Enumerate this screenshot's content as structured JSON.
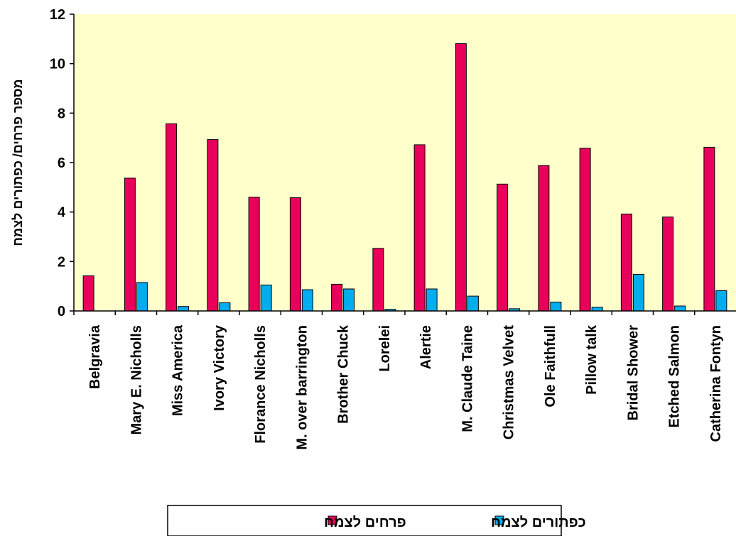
{
  "chart_data": {
    "type": "bar",
    "ylabel": "מספר פרחים/ כפתורים לצמח",
    "ylim": [
      0,
      12
    ],
    "yticks": [
      "0",
      "2",
      "4",
      "6",
      "8",
      "10",
      "12"
    ],
    "grid": false,
    "legend_position": "bottom",
    "categories": [
      "Belgravia",
      "Mary E. Nicholls",
      "Miss America",
      "Ivory Victory",
      "Florance Nicholls",
      "M. over barrington",
      "Brother Chuck",
      "Lorelei",
      "Alertie",
      "M. Claude Taine",
      "Christmas Velvet",
      "Ole Faithfull",
      "Pillow talk",
      "Bridal Shower",
      "Etched Salmon",
      "Catherina Fontyn"
    ],
    "series": [
      {
        "name": "פרחים לצמח",
        "color": "#e8005a",
        "values": [
          1.42,
          5.37,
          7.57,
          6.93,
          4.6,
          4.58,
          1.08,
          2.53,
          6.72,
          10.81,
          5.13,
          5.88,
          6.58,
          3.92,
          3.8,
          6.62
        ]
      },
      {
        "name": "כפתורים לצמח",
        "color": "#00aeef",
        "values": [
          0.0,
          1.15,
          0.18,
          0.33,
          1.05,
          0.86,
          0.89,
          0.07,
          0.89,
          0.6,
          0.09,
          0.36,
          0.15,
          1.48,
          0.2,
          0.82
        ]
      }
    ],
    "colors": {
      "plot_background": "#ffffcc",
      "axis": "#000000"
    }
  }
}
